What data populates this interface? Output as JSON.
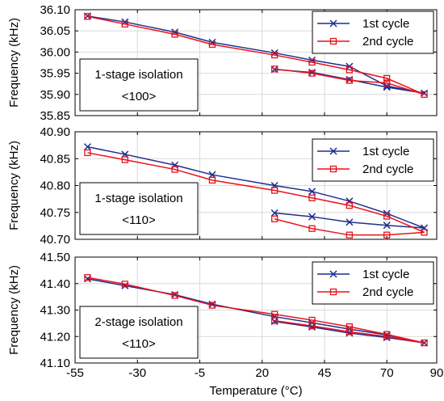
{
  "chart_data": [
    {
      "type": "line",
      "ylabel": "Frequency (kHz)",
      "xlabel": "",
      "ylim": [
        35.85,
        36.1
      ],
      "yticks": [
        "36.10",
        "36.05",
        "36.00",
        "35.95",
        "35.90",
        "35.85"
      ],
      "xlim": [
        -55,
        90
      ],
      "annotation": [
        "1-stage isolation",
        "<100>"
      ],
      "legend_position": "top-right",
      "grid": true,
      "series": [
        {
          "name": "1st cycle",
          "color": "#1f2f8f",
          "marker": "x",
          "x": [
            -50,
            -35,
            -15,
            0,
            25,
            40,
            55,
            70,
            85,
            70,
            55,
            40,
            25
          ],
          "y": [
            36.085,
            36.071,
            36.047,
            36.023,
            35.998,
            35.981,
            35.966,
            35.92,
            35.903,
            35.917,
            35.935,
            35.952,
            35.959
          ]
        },
        {
          "name": "2nd cycle",
          "color": "#e8121b",
          "marker": "square",
          "x": [
            -50,
            -35,
            -15,
            0,
            25,
            40,
            55,
            70,
            85,
            70,
            55,
            40,
            25
          ],
          "y": [
            36.084,
            36.066,
            36.042,
            36.018,
            35.993,
            35.976,
            35.958,
            35.938,
            35.9,
            35.927,
            35.933,
            35.95,
            35.96
          ]
        }
      ]
    },
    {
      "type": "line",
      "ylabel": "Frequency (kHz)",
      "xlabel": "",
      "ylim": [
        40.7,
        40.9
      ],
      "yticks": [
        "40.90",
        "40.85",
        "40.80",
        "40.75",
        "40.70"
      ],
      "xlim": [
        -55,
        90
      ],
      "annotation": [
        "1-stage isolation",
        "<110>"
      ],
      "legend_position": "top-right",
      "grid": true,
      "series": [
        {
          "name": "1st cycle",
          "color": "#1f2f8f",
          "marker": "x",
          "x": [
            -50,
            -35,
            -15,
            0,
            25,
            40,
            55,
            70,
            85,
            70,
            55,
            40,
            25
          ],
          "y": [
            40.872,
            40.858,
            40.838,
            40.82,
            40.8,
            40.789,
            40.771,
            40.748,
            40.721,
            40.726,
            40.732,
            40.742,
            40.749
          ]
        },
        {
          "name": "2nd cycle",
          "color": "#e8121b",
          "marker": "square",
          "x": [
            -50,
            -35,
            -15,
            0,
            25,
            40,
            55,
            70,
            85,
            70,
            55,
            40,
            25
          ],
          "y": [
            40.861,
            40.848,
            40.83,
            40.81,
            40.791,
            40.777,
            40.763,
            40.743,
            40.713,
            40.708,
            40.708,
            40.72,
            40.738
          ]
        }
      ]
    },
    {
      "type": "line",
      "ylabel": "Frequency (kHz)",
      "xlabel": "Temperature (°C)",
      "ylim": [
        41.1,
        41.5
      ],
      "yticks": [
        "41.50",
        "41.40",
        "41.30",
        "41.20",
        "41.10"
      ],
      "xlim": [
        -55,
        90
      ],
      "xticks": [
        "-55",
        "-30",
        "-5",
        "20",
        "45",
        "70",
        "90"
      ],
      "annotation": [
        "2-stage isolation",
        "<110>"
      ],
      "legend_position": "top-right",
      "grid": true,
      "series": [
        {
          "name": "1st cycle",
          "color": "#1f2f8f",
          "marker": "x",
          "x": [
            -50,
            -35,
            -15,
            0,
            25,
            40,
            55,
            70,
            85,
            70,
            55,
            40,
            25
          ],
          "y": [
            41.418,
            41.392,
            41.358,
            41.322,
            41.275,
            41.252,
            41.228,
            41.206,
            41.176,
            41.196,
            41.213,
            41.236,
            41.257
          ]
        },
        {
          "name": "2nd cycle",
          "color": "#e8121b",
          "marker": "square",
          "x": [
            -50,
            -35,
            -15,
            0,
            25,
            40,
            55,
            70,
            85,
            70,
            55,
            40,
            25
          ],
          "y": [
            41.423,
            41.398,
            41.355,
            41.318,
            41.284,
            41.262,
            41.237,
            41.208,
            41.176,
            41.2,
            41.218,
            41.24,
            41.26
          ]
        }
      ]
    }
  ]
}
